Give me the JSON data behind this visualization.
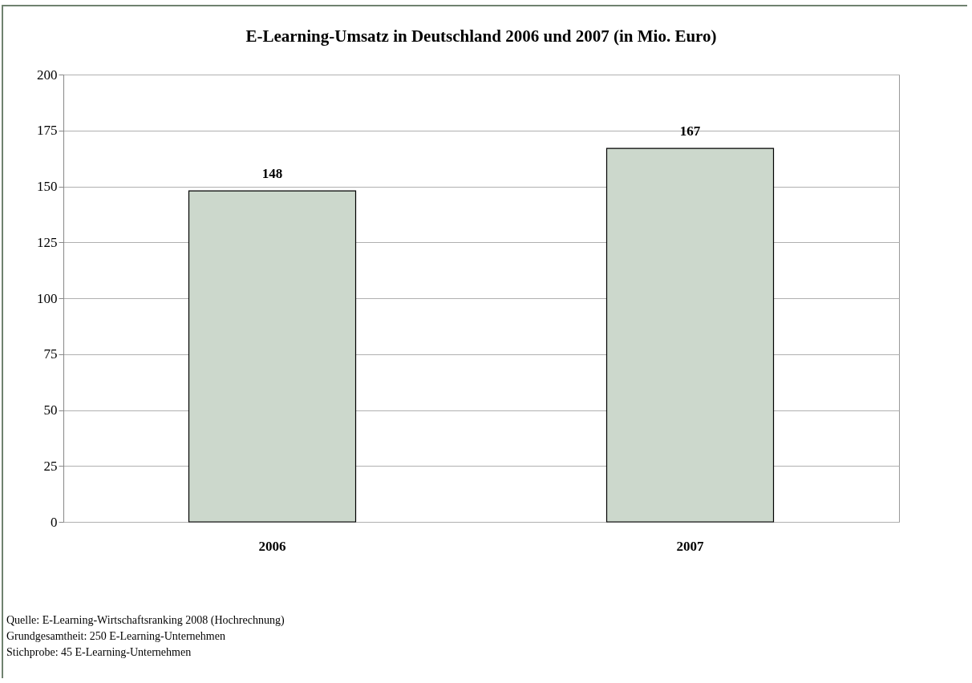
{
  "chart_data": {
    "type": "bar",
    "title": "E-Learning-Umsatz in Deutschland 2006 und 2007 (in   Mio. Euro)",
    "categories": [
      "2006",
      "2007"
    ],
    "values": [
      148,
      167
    ],
    "color": "#ccd8cc",
    "ylim": [
      0,
      200
    ],
    "yticks": [
      0,
      25,
      50,
      75,
      100,
      125,
      150,
      175,
      200
    ],
    "grid": "y",
    "data_labels": true,
    "annotations": [
      "Quelle: E-Learning-Wirtschaftsranking 2008 (Hochrechnung)",
      "Grundgesamtheit: 250 E-Learning-Unternehmen",
      "Stichprobe: 45 E-Learning-Unternehmen"
    ]
  }
}
